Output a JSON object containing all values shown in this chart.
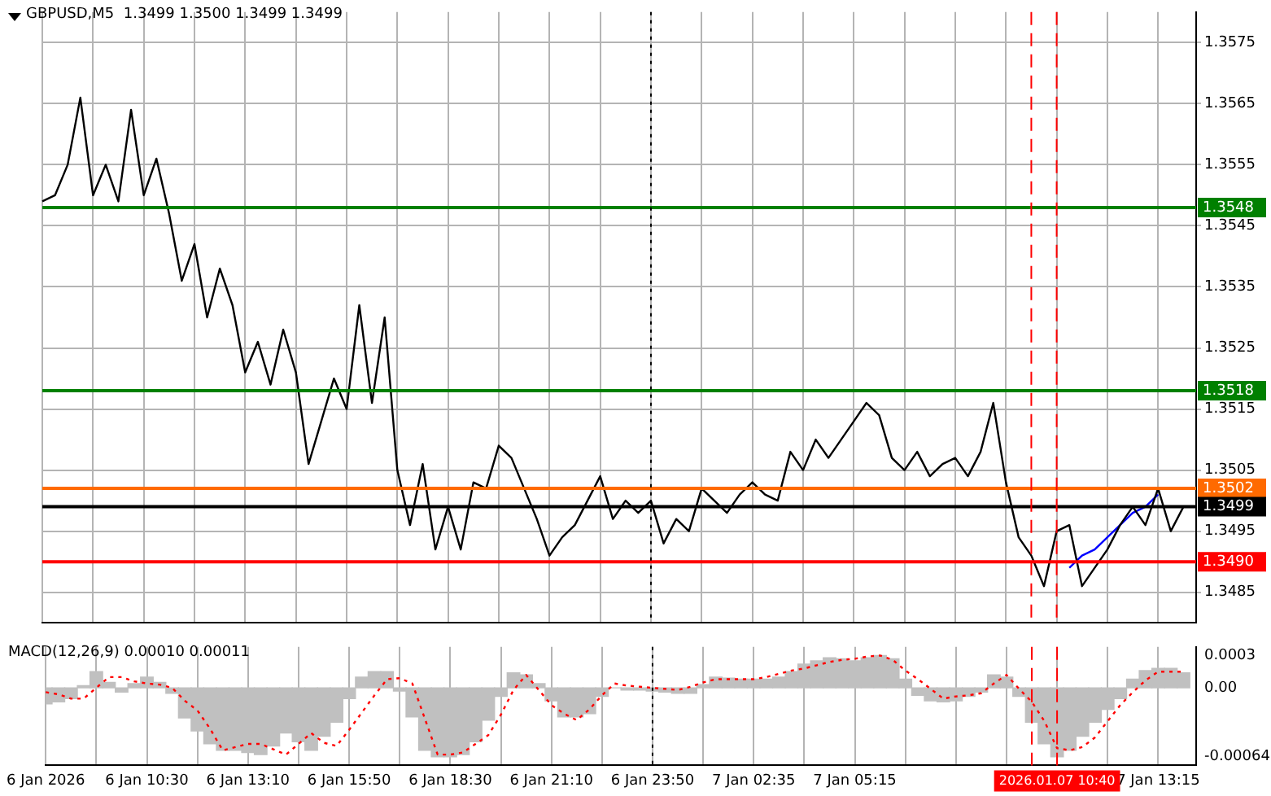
{
  "chart_data": [
    {
      "type": "line",
      "title": "GBPUSD,M5  1.3499 1.3500 1.3499 1.3499",
      "categories": [
        "6 Jan 2026",
        null,
        null,
        null,
        null,
        null,
        null,
        null,
        "6 Jan 10:30",
        null,
        null,
        null,
        null,
        null,
        null,
        null,
        "6 Jan 13:10",
        null,
        null,
        null,
        null,
        null,
        null,
        null,
        "6 Jan 15:50",
        null,
        null,
        null,
        null,
        null,
        null,
        null,
        "6 Jan 18:30",
        null,
        null,
        null,
        null,
        null,
        null,
        null,
        "6 Jan 21:10",
        null,
        null,
        null,
        null,
        null,
        null,
        null,
        "6 Jan 23:50",
        null,
        null,
        null,
        null,
        null,
        null,
        null,
        "7 Jan 02:35",
        null,
        null,
        null,
        null,
        null,
        null,
        null,
        "7 Jan 05:15",
        null,
        null,
        null,
        null,
        null,
        null,
        null,
        null,
        null,
        null,
        null,
        null,
        null,
        null,
        null,
        null,
        null,
        null,
        null,
        null,
        null,
        null,
        null,
        "7 Jan 13:15",
        null,
        null,
        null
      ],
      "ylim": [
        1.348,
        1.358
      ],
      "yticks": [
        1.3485,
        1.3495,
        1.3505,
        1.3515,
        1.3525,
        1.3535,
        1.3545,
        1.3555,
        1.3565,
        1.3575
      ],
      "tick_labels": "y",
      "grid": true,
      "series": [
        {
          "color": "#000000",
          "values": [
            1.3549,
            1.355,
            1.3555,
            1.3566,
            1.355,
            1.3555,
            1.3549,
            1.3564,
            1.355,
            1.3556,
            1.3547,
            1.3536,
            1.3542,
            1.353,
            1.3538,
            1.3532,
            1.3521,
            1.3526,
            1.3519,
            1.3528,
            1.3521,
            1.3506,
            1.3513,
            1.352,
            1.3515,
            1.3532,
            1.3516,
            1.353,
            1.3505,
            1.3496,
            1.3506,
            1.3492,
            1.3499,
            1.3492,
            1.3503,
            1.3502,
            1.3509,
            1.3507,
            1.3502,
            1.3497,
            1.3491,
            1.3494,
            1.3496,
            1.35,
            1.3504,
            1.3497,
            1.35,
            1.3498,
            1.35,
            1.3493,
            1.3497,
            1.3495,
            1.3502,
            1.35,
            1.3498,
            1.3501,
            1.3503,
            1.3501,
            1.35,
            1.3508,
            1.3505,
            1.351,
            1.3507,
            1.351,
            1.3513,
            1.3516,
            1.3514,
            1.3507,
            1.3505,
            1.3508,
            1.3504,
            1.3506,
            1.3507,
            1.3504,
            1.3508,
            1.3516,
            1.3503,
            1.3494,
            1.3491,
            1.3486,
            1.3495,
            1.3496,
            1.3486,
            1.3489,
            1.3492,
            1.3496,
            1.3499,
            1.3496,
            1.3502,
            1.3495,
            1.3499,
            null
          ]
        },
        {
          "color": "#0000ff",
          "values": [
            null,
            null,
            null,
            null,
            null,
            null,
            null,
            null,
            null,
            null,
            null,
            null,
            null,
            null,
            null,
            null,
            null,
            null,
            null,
            null,
            null,
            null,
            null,
            null,
            null,
            null,
            null,
            null,
            null,
            null,
            null,
            null,
            null,
            null,
            null,
            null,
            null,
            null,
            null,
            null,
            null,
            null,
            null,
            null,
            null,
            null,
            null,
            null,
            null,
            null,
            null,
            null,
            null,
            null,
            null,
            null,
            null,
            null,
            null,
            null,
            null,
            null,
            null,
            null,
            null,
            null,
            null,
            null,
            null,
            null,
            null,
            null,
            null,
            null,
            null,
            null,
            null,
            null,
            null,
            null,
            null,
            1.3489,
            1.3491,
            1.3492,
            1.3494,
            1.3496,
            1.3498,
            1.3499,
            1.3501,
            null,
            null,
            null
          ]
        }
      ],
      "ref_lines": [
        {
          "axis": "y",
          "value": 1.3548,
          "label": "1.3548",
          "color": "#008000"
        },
        {
          "axis": "y",
          "value": 1.3518,
          "label": "1.3518",
          "color": "#008000"
        },
        {
          "axis": "y",
          "value": 1.3502,
          "label": "1.3502",
          "color": "#ff6a00"
        },
        {
          "axis": "y",
          "value": 1.3499,
          "label": "1.3499",
          "color": "#000000"
        },
        {
          "axis": "y",
          "value": 1.349,
          "label": "1.3490",
          "color": "#ff0000"
        },
        {
          "axis": "x",
          "value": "6 Jan 23:50",
          "color": "#000000",
          "line_style": "dotted"
        }
      ]
    },
    {
      "type": "bar",
      "title": "MACD(12,26,9) 0.00010 0.00011",
      "categories": [
        "6 Jan 2026",
        null,
        null,
        null,
        null,
        null,
        null,
        null,
        "6 Jan 10:30",
        null,
        null,
        null,
        null,
        null,
        null,
        null,
        "6 Jan 13:10",
        null,
        null,
        null,
        null,
        null,
        null,
        null,
        "6 Jan 15:50",
        null,
        null,
        null,
        null,
        null,
        null,
        null,
        "6 Jan 18:30",
        null,
        null,
        null,
        null,
        null,
        null,
        null,
        "6 Jan 21:10",
        null,
        null,
        null,
        null,
        null,
        null,
        null,
        "6 Jan 23:50",
        null,
        null,
        null,
        null,
        null,
        null,
        null,
        "7 Jan 02:35",
        null,
        null,
        null,
        null,
        null,
        null,
        null,
        "7 Jan 05:15",
        null,
        null,
        null,
        null,
        null,
        null,
        null,
        null,
        null,
        null,
        null,
        null,
        null,
        null,
        null,
        null,
        null,
        null,
        null,
        null,
        null,
        null,
        null,
        "7 Jan 13:15",
        null,
        null,
        null
      ],
      "ylim": [
        -0.00072,
        0.00038
      ],
      "yticks": [
        {
          "value": -0.00064,
          "label": "-0.00064"
        },
        {
          "value": 0,
          "label": "0.00"
        },
        {
          "value": 0.0003,
          "label": "0.0003"
        }
      ],
      "grid": "x",
      "series": [
        {
          "color": "#c0c0c0",
          "values": [
            -0.00015,
            -0.00013,
            -0.0001,
            2e-05,
            0.00015,
            5e-05,
            -4e-05,
            4e-05,
            0.0001,
            5e-05,
            -5e-05,
            -0.00028,
            -0.0004,
            -0.00052,
            -0.00058,
            -0.00058,
            -0.0006,
            -0.00062,
            -0.00054,
            -0.00042,
            -0.0005,
            -0.00058,
            -0.00045,
            -0.00032,
            -0.0001,
            0.0001,
            0.00015,
            0.00015,
            -3e-05,
            -0.00027,
            -0.00058,
            -0.00064,
            -0.00064,
            -0.00062,
            -0.0005,
            -0.0003,
            -8e-05,
            0.00014,
            0.00012,
            4e-05,
            -0.00012,
            -0.00027,
            -0.00027,
            -0.00024,
            -8e-05,
            0,
            -2e-05,
            -2e-05,
            -3e-05,
            -4e-05,
            -5e-05,
            -5e-05,
            3e-05,
            0.0001,
            9e-05,
            8e-05,
            8e-05,
            8e-05,
            0.0001,
            0.00015,
            0.00022,
            0.00025,
            0.00028,
            0.00027,
            0.00025,
            0.00028,
            0.0003,
            0.00027,
            8e-05,
            -7e-05,
            -0.00012,
            -0.00013,
            -0.00012,
            -8e-05,
            -4e-05,
            0.00012,
            0.0001,
            -8e-05,
            -0.00032,
            -0.00052,
            -0.00064,
            -0.00058,
            -0.00045,
            -0.00032,
            -0.0002,
            -0.0001,
            8e-05,
            0.00016,
            0.00018,
            0.00018,
            0.00014,
            null
          ]
        },
        {
          "type": "line",
          "color": "#ff0000",
          "line_style": "dotted",
          "values": [
            -4e-05,
            -6e-05,
            -0.0001,
            -0.0001,
            0,
            0.0001,
            0.0001,
            6e-05,
            4e-05,
            3e-05,
            0,
            -0.00012,
            -0.00021,
            -0.00038,
            -0.00058,
            -0.00055,
            -0.00052,
            -0.00052,
            -0.00057,
            -0.00062,
            -0.00052,
            -0.00042,
            -0.00051,
            -0.00054,
            -0.00039,
            -0.00023,
            -7e-05,
            8e-05,
            9e-05,
            4e-05,
            -0.00029,
            -0.00062,
            -0.00062,
            -0.0006,
            -0.00052,
            -0.00044,
            -0.00025,
            -2e-05,
            0.00012,
            -2e-05,
            -0.00016,
            -0.00024,
            -0.0003,
            -0.0002,
            -7e-05,
            4e-05,
            2e-05,
            1e-05,
            0,
            -1e-05,
            -2e-05,
            1e-05,
            5e-05,
            8e-05,
            8e-05,
            8e-05,
            8e-05,
            0.0001,
            0.00013,
            0.00016,
            0.00018,
            0.00021,
            0.00024,
            0.00026,
            0.00027,
            0.00029,
            0.0003,
            0.00026,
            0.00016,
            8e-05,
            -1e-05,
            -0.0001,
            -8e-05,
            -7e-05,
            -5e-05,
            4e-05,
            0.00012,
            -1e-05,
            -0.00013,
            -0.00031,
            -0.00056,
            -0.00058,
            -0.00055,
            -0.00046,
            -0.00031,
            -0.00016,
            -4e-05,
            7e-05,
            0.00015,
            0.00015,
            0.00015,
            null
          ]
        }
      ],
      "ref_lines": [
        {
          "axis": "x",
          "value": "6 Jan 23:50",
          "color": "#000000",
          "line_style": "dotted"
        }
      ],
      "annotations": [
        "2026.01.07 10:40"
      ]
    }
  ]
}
